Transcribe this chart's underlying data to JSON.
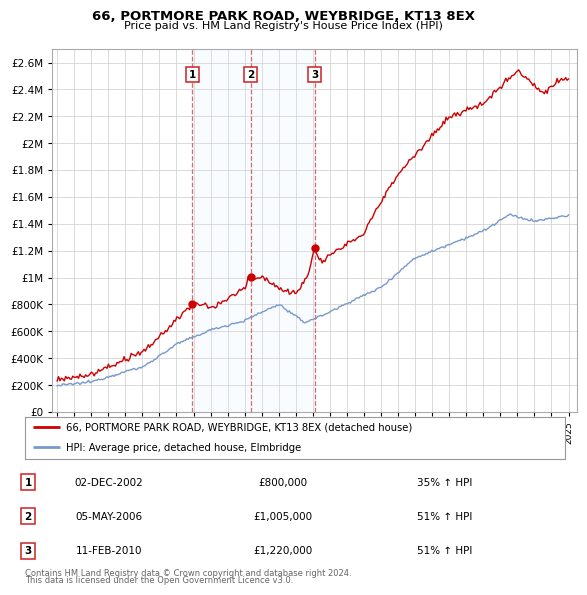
{
  "title": "66, PORTMORE PARK ROAD, WEYBRIDGE, KT13 8EX",
  "subtitle": "Price paid vs. HM Land Registry's House Price Index (HPI)",
  "property_label": "66, PORTMORE PARK ROAD, WEYBRIDGE, KT13 8EX (detached house)",
  "hpi_label": "HPI: Average price, detached house, Elmbridge",
  "footer1": "Contains HM Land Registry data © Crown copyright and database right 2024.",
  "footer2": "This data is licensed under the Open Government Licence v3.0.",
  "transactions": [
    {
      "num": 1,
      "date": "02-DEC-2002",
      "price": "£800,000",
      "price_val": 800000,
      "pct": "35% ↑ HPI",
      "year": 2002.92
    },
    {
      "num": 2,
      "date": "05-MAY-2006",
      "price": "£1,005,000",
      "price_val": 1005000,
      "pct": "51% ↑ HPI",
      "year": 2006.37
    },
    {
      "num": 3,
      "date": "11-FEB-2010",
      "price": "£1,220,000",
      "price_val": 1220000,
      "pct": "51% ↑ HPI",
      "year": 2010.12
    }
  ],
  "red_line_color": "#cc0000",
  "blue_line_color": "#7799cc",
  "shade_color": "#ddeeff",
  "dashed_line_color": "#dd6666",
  "background_color": "#ffffff",
  "grid_color": "#cccccc",
  "ylim": [
    0,
    2700000
  ],
  "xlim_start": 1994.7,
  "xlim_end": 2025.5
}
